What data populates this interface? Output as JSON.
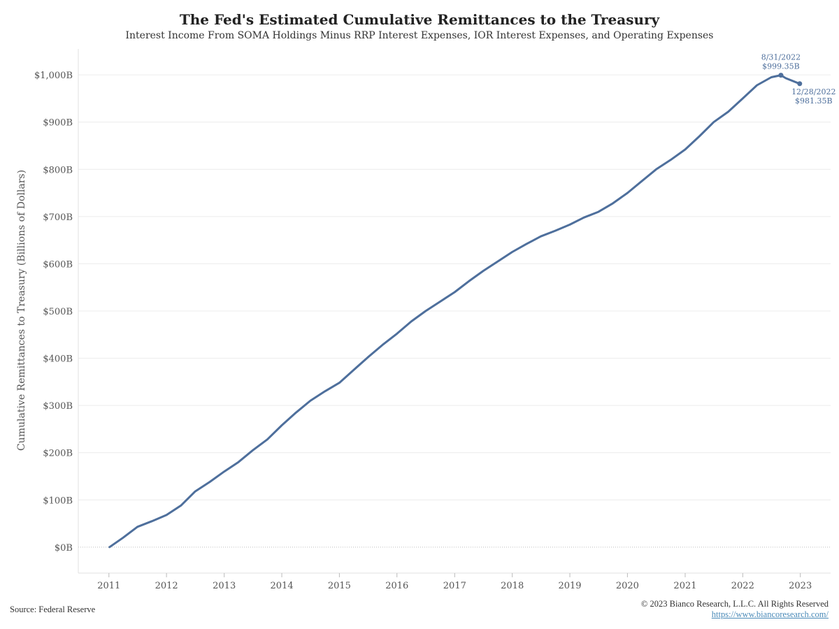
{
  "title": "The Fed's Estimated Cumulative Remittances to the Treasury",
  "subtitle": "Interest Income From SOMA Holdings Minus RRP Interest Expenses, IOR Interest Expenses, and Operating Expenses",
  "source": "Source: Federal Reserve",
  "copyright": "© 2023 Bianco Research, L.L.C. All Rights Reserved",
  "website": "https://www.biancoresearch.com/",
  "colors": {
    "line": "#4e6f9c",
    "annotation": "#4e6f9c",
    "link": "#4a8ab8",
    "grid": "#ececec"
  },
  "chart_data": {
    "type": "line",
    "title": "The Fed's Estimated Cumulative Remittances to the Treasury",
    "subtitle": "Interest Income From SOMA Holdings Minus RRP Interest Expenses, IOR Interest Expenses, and Operating Expenses",
    "xlabel": "",
    "ylabel": "Cumulative Remittances to Treasury (Billions of Dollars)",
    "x_tick_labels": [
      "2011",
      "2012",
      "2013",
      "2014",
      "2015",
      "2016",
      "2017",
      "2018",
      "2019",
      "2020",
      "2021",
      "2022",
      "2023"
    ],
    "y_tick_labels": [
      "$0B",
      "$100B",
      "$200B",
      "$300B",
      "$400B",
      "$500B",
      "$600B",
      "$700B",
      "$800B",
      "$900B",
      "$1,000B"
    ],
    "y_ticks": [
      0,
      100,
      200,
      300,
      400,
      500,
      600,
      700,
      800,
      900,
      1000
    ],
    "ylim": [
      -55,
      1055
    ],
    "xlim": [
      "2010-06-21",
      "2023-07-12"
    ],
    "grid": true,
    "legend": "none",
    "series": [
      {
        "x": [
          "2011-01-05",
          "2011-04-01",
          "2011-07-01",
          "2011-10-01",
          "2012-01-01",
          "2012-04-01",
          "2012-07-01",
          "2012-10-01",
          "2013-01-01",
          "2013-04-01",
          "2013-07-01",
          "2013-10-01",
          "2014-01-01",
          "2014-04-01",
          "2014-07-01",
          "2014-10-01",
          "2015-01-01",
          "2015-04-01",
          "2015-07-01",
          "2015-10-01",
          "2016-01-01",
          "2016-04-01",
          "2016-07-01",
          "2016-10-01",
          "2017-01-01",
          "2017-04-01",
          "2017-07-01",
          "2017-10-01",
          "2018-01-01",
          "2018-04-01",
          "2018-07-01",
          "2018-10-01",
          "2019-01-01",
          "2019-04-01",
          "2019-07-01",
          "2019-10-01",
          "2020-01-01",
          "2020-04-01",
          "2020-07-01",
          "2020-10-01",
          "2021-01-01",
          "2021-04-01",
          "2021-07-01",
          "2021-10-01",
          "2022-01-01",
          "2022-04-01",
          "2022-07-01",
          "2022-08-31",
          "2022-10-01",
          "2022-12-28"
        ],
        "values": [
          0,
          20,
          43,
          55,
          68,
          88,
          118,
          138,
          160,
          180,
          205,
          228,
          258,
          285,
          310,
          330,
          348,
          375,
          402,
          428,
          452,
          478,
          500,
          520,
          540,
          563,
          585,
          605,
          625,
          642,
          658,
          670,
          683,
          698,
          710,
          728,
          750,
          775,
          800,
          820,
          842,
          870,
          900,
          922,
          950,
          978,
          995,
          999.35,
          993,
          981.35
        ]
      }
    ],
    "annotations": [
      {
        "date": "8/31/2022",
        "value_label": "$999.35B",
        "x": "2022-08-31",
        "y": 999.35
      },
      {
        "date": "12/28/2022",
        "value_label": "$981.35B",
        "x": "2022-12-28",
        "y": 981.35
      }
    ]
  }
}
